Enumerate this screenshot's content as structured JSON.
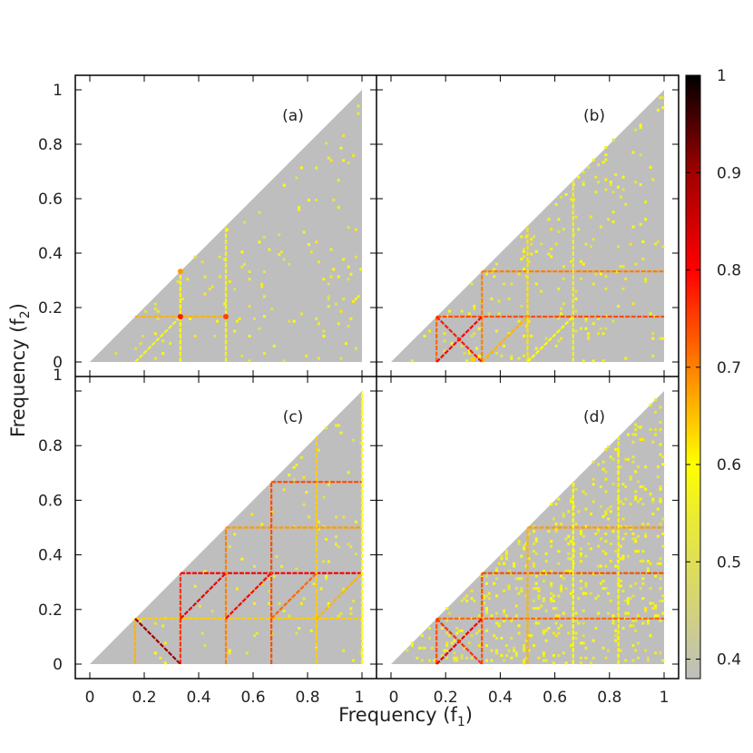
{
  "chart_data": {
    "type": "heatmap",
    "xlabel": "Frequency (f",
    "xlabel_sub": "1",
    "xlabel_close": ")",
    "ylabel": "Frequency (f",
    "ylabel_sub": "2",
    "ylabel_close": ")",
    "xlim": [
      0,
      1
    ],
    "ylim": [
      0,
      1
    ],
    "x_ticks": [
      "0",
      "0.2",
      "0.4",
      "0.6",
      "0.8",
      "1"
    ],
    "y_ticks": [
      "0",
      "0.2",
      "0.4",
      "0.6",
      "0.8",
      "1"
    ],
    "domain": "triangular region f2 <= f1",
    "grid": false,
    "colorbar": {
      "range": [
        0.38,
        1.0
      ],
      "ticks": [
        "0.4",
        "0.5",
        "0.6",
        "0.7",
        "0.8",
        "0.9",
        "1"
      ],
      "stops": [
        {
          "v": 0.38,
          "color": "#bebebe"
        },
        {
          "v": 0.45,
          "color": "#d2d27c"
        },
        {
          "v": 0.55,
          "color": "#ecec30"
        },
        {
          "v": 0.6,
          "color": "#ffff00"
        },
        {
          "v": 0.65,
          "color": "#ffc000"
        },
        {
          "v": 0.7,
          "color": "#ff8000"
        },
        {
          "v": 0.8,
          "color": "#ff0000"
        },
        {
          "v": 0.9,
          "color": "#a00000"
        },
        {
          "v": 1.0,
          "color": "#000000"
        }
      ]
    },
    "panels": [
      {
        "label": "(a)",
        "background_value": 0.38,
        "noise_density": 0.02,
        "noise_value_range": [
          0.5,
          0.62
        ],
        "lines": [
          {
            "kind": "h",
            "f2": 0.1667,
            "f1_range": [
              0.1667,
              0.5
            ],
            "value": 0.66
          },
          {
            "kind": "v",
            "f1": 0.333,
            "f2_range": [
              0.0,
              0.333
            ],
            "value": 0.6
          },
          {
            "kind": "v",
            "f1": 0.5,
            "f2_range": [
              0.0,
              0.5
            ],
            "value": 0.57
          },
          {
            "kind": "d",
            "offset": 0.1667,
            "f1_range": [
              0.1667,
              0.333
            ],
            "value": 0.58
          }
        ],
        "hotspots": [
          {
            "f1": 0.333,
            "f2": 0.1667,
            "value": 0.78
          },
          {
            "f1": 0.5,
            "f2": 0.1667,
            "value": 0.75
          },
          {
            "f1": 0.333,
            "f2": 0.333,
            "value": 0.68
          }
        ]
      },
      {
        "label": "(b)",
        "background_value": 0.38,
        "noise_density": 0.03,
        "noise_value_range": [
          0.5,
          0.62
        ],
        "lines": [
          {
            "kind": "h",
            "f2": 0.1667,
            "f1_range": [
              0.1667,
              1.0
            ],
            "value": 0.74
          },
          {
            "kind": "h",
            "f2": 0.333,
            "f1_range": [
              0.333,
              1.0
            ],
            "value": 0.7
          },
          {
            "kind": "v",
            "f1": 0.1667,
            "f2_range": [
              0.0,
              0.1667
            ],
            "value": 0.72
          },
          {
            "kind": "v",
            "f1": 0.333,
            "f2_range": [
              0.0,
              0.333
            ],
            "value": 0.7
          },
          {
            "kind": "v",
            "f1": 0.5,
            "f2_range": [
              0.0,
              0.5
            ],
            "value": 0.62
          },
          {
            "kind": "v",
            "f1": 0.667,
            "f2_range": [
              0.0,
              0.667
            ],
            "value": 0.56
          },
          {
            "kind": "d",
            "offset": 0.1667,
            "f1_range": [
              0.1667,
              0.333
            ],
            "value": 0.8
          },
          {
            "kind": "d",
            "offset": 0.333,
            "f1_range": [
              0.333,
              0.5
            ],
            "value": 0.66
          },
          {
            "kind": "d",
            "offset": 0.5,
            "f1_range": [
              0.5,
              0.667
            ],
            "value": 0.6
          },
          {
            "kind": "a",
            "sum": 0.333,
            "f1_range": [
              0.1667,
              0.333
            ],
            "value": 0.78
          }
        ],
        "hotspots": [
          {
            "f1": 0.3,
            "f2": 0.01,
            "value": 0.64
          }
        ]
      },
      {
        "label": "(c)",
        "background_value": 0.38,
        "noise_density": 0.015,
        "noise_value_range": [
          0.5,
          0.62
        ],
        "lines": [
          {
            "kind": "h",
            "f2": 0.1667,
            "f1_range": [
              0.1667,
              1.0
            ],
            "value": 0.64
          },
          {
            "kind": "h",
            "f2": 0.333,
            "f1_range": [
              0.333,
              1.0
            ],
            "value": 0.8
          },
          {
            "kind": "h",
            "f2": 0.5,
            "f1_range": [
              0.5,
              1.0
            ],
            "value": 0.68
          },
          {
            "kind": "h",
            "f2": 0.667,
            "f1_range": [
              0.667,
              1.0
            ],
            "value": 0.74
          },
          {
            "kind": "v",
            "f1": 0.1667,
            "f2_range": [
              0.0,
              0.1667
            ],
            "value": 0.66
          },
          {
            "kind": "v",
            "f1": 0.333,
            "f2_range": [
              0.0,
              0.333
            ],
            "value": 0.76
          },
          {
            "kind": "v",
            "f1": 0.5,
            "f2_range": [
              0.0,
              0.5
            ],
            "value": 0.7
          },
          {
            "kind": "v",
            "f1": 0.667,
            "f2_range": [
              0.0,
              0.667
            ],
            "value": 0.74
          },
          {
            "kind": "v",
            "f1": 0.833,
            "f2_range": [
              0.0,
              0.833
            ],
            "value": 0.64
          },
          {
            "kind": "v",
            "f1": 1.0,
            "f2_range": [
              0.0,
              1.0
            ],
            "value": 0.6
          },
          {
            "kind": "d",
            "offset": 0.1667,
            "f1_range": [
              0.333,
              0.5
            ],
            "value": 0.82
          },
          {
            "kind": "d",
            "offset": 0.333,
            "f1_range": [
              0.5,
              0.667
            ],
            "value": 0.8
          },
          {
            "kind": "d",
            "offset": 0.5,
            "f1_range": [
              0.667,
              0.833
            ],
            "value": 0.72
          },
          {
            "kind": "d",
            "offset": 0.667,
            "f1_range": [
              0.833,
              1.0
            ],
            "value": 0.66
          },
          {
            "kind": "a",
            "sum": 0.333,
            "f1_range": [
              0.1667,
              0.333
            ],
            "value": 0.9
          }
        ],
        "hotspots": []
      },
      {
        "label": "(d)",
        "background_value": 0.38,
        "noise_density": 0.09,
        "noise_value_range": [
          0.5,
          0.62
        ],
        "lines": [
          {
            "kind": "h",
            "f2": 0.1667,
            "f1_range": [
              0.1667,
              1.0
            ],
            "value": 0.72
          },
          {
            "kind": "h",
            "f2": 0.333,
            "f1_range": [
              0.333,
              1.0
            ],
            "value": 0.74
          },
          {
            "kind": "h",
            "f2": 0.5,
            "f1_range": [
              0.5,
              1.0
            ],
            "value": 0.68
          },
          {
            "kind": "v",
            "f1": 0.1667,
            "f2_range": [
              0.0,
              0.1667
            ],
            "value": 0.74
          },
          {
            "kind": "v",
            "f1": 0.333,
            "f2_range": [
              0.0,
              0.333
            ],
            "value": 0.74
          },
          {
            "kind": "v",
            "f1": 0.5,
            "f2_range": [
              0.0,
              0.5
            ],
            "value": 0.66
          },
          {
            "kind": "v",
            "f1": 0.667,
            "f2_range": [
              0.0,
              0.667
            ],
            "value": 0.6
          },
          {
            "kind": "v",
            "f1": 0.833,
            "f2_range": [
              0.0,
              0.833
            ],
            "value": 0.58
          },
          {
            "kind": "d",
            "offset": 0.1667,
            "f1_range": [
              0.1667,
              0.333
            ],
            "value": 0.82
          },
          {
            "kind": "a",
            "sum": 0.333,
            "f1_range": [
              0.1667,
              0.333
            ],
            "value": 0.76
          }
        ],
        "hotspots": []
      }
    ]
  }
}
